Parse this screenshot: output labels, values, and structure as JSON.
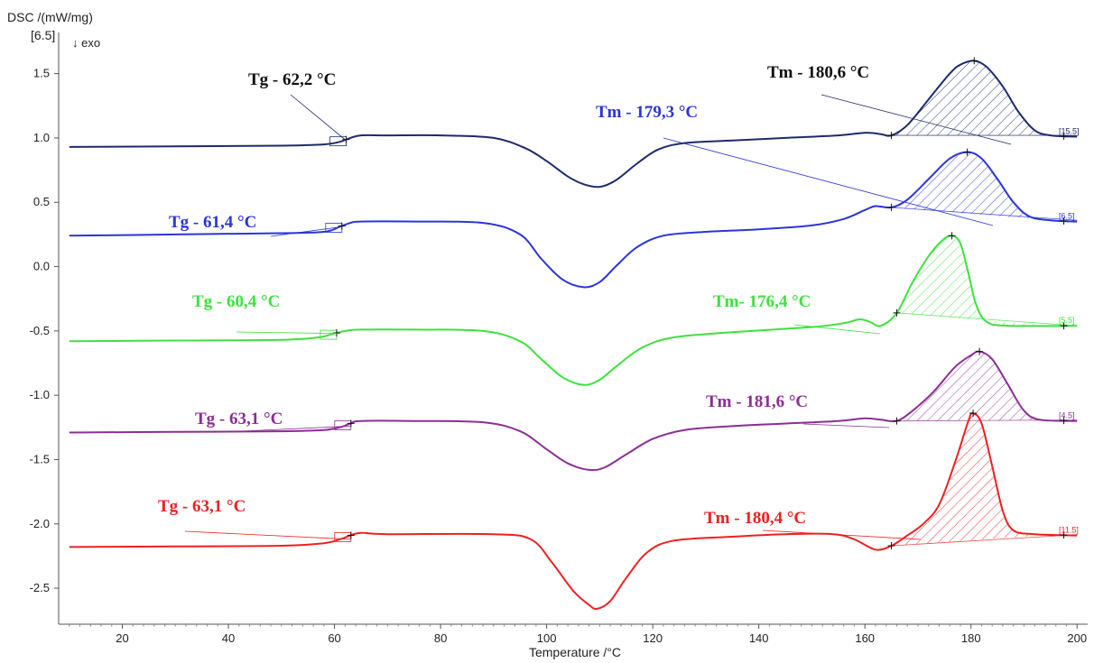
{
  "chart_data": {
    "type": "line",
    "ylabel": "DSC /(mW/mg)",
    "ylabel_prefix": "[6.5]",
    "exo_label": "↓ exo",
    "xlabel": "Temperature /°C",
    "xlim": [
      8,
      202
    ],
    "ylim": [
      -2.78,
      1.82
    ],
    "x_ticks": [
      20,
      40,
      60,
      80,
      100,
      120,
      140,
      160,
      180,
      200
    ],
    "y_ticks": [
      1.5,
      1.0,
      0.5,
      0.0,
      -0.5,
      -1.0,
      -1.5,
      -2.0,
      -2.5
    ],
    "x_tick_labels": [
      "20",
      "40",
      "60",
      "80",
      "100",
      "120",
      "140",
      "160",
      "180",
      "200"
    ],
    "y_tick_labels": [
      "1.5",
      "1.0",
      "0.5",
      "0.0",
      "-0.5",
      "-1.0",
      "-1.5",
      "-2.0",
      "-2.5"
    ],
    "series": [
      {
        "color": "#1e2a6e",
        "end_marker": "[15.5]",
        "tg_label": "Tg - 62,2 °C",
        "tm_label": "Tm - 180,6 °C",
        "tg": 62.2,
        "tm": 180.6,
        "points": [
          [
            10,
            0.93
          ],
          [
            30,
            0.935
          ],
          [
            50,
            0.94
          ],
          [
            58,
            0.95
          ],
          [
            61,
            0.97
          ],
          [
            63,
            1.0
          ],
          [
            65,
            1.02
          ],
          [
            70,
            1.02
          ],
          [
            80,
            1.02
          ],
          [
            90,
            1.0
          ],
          [
            96,
            0.92
          ],
          [
            100,
            0.82
          ],
          [
            104,
            0.7
          ],
          [
            107,
            0.64
          ],
          [
            110,
            0.62
          ],
          [
            113,
            0.67
          ],
          [
            117,
            0.8
          ],
          [
            121,
            0.91
          ],
          [
            126,
            0.96
          ],
          [
            135,
            0.98
          ],
          [
            145,
            1.0
          ],
          [
            155,
            1.02
          ],
          [
            160,
            1.04
          ],
          [
            163,
            1.03
          ],
          [
            165,
            1.02
          ],
          [
            168,
            1.1
          ],
          [
            172,
            1.3
          ],
          [
            176,
            1.5
          ],
          [
            178,
            1.57
          ],
          [
            180.6,
            1.6
          ],
          [
            183,
            1.55
          ],
          [
            186,
            1.4
          ],
          [
            189,
            1.2
          ],
          [
            192,
            1.06
          ],
          [
            195,
            1.02
          ],
          [
            200,
            1.01
          ]
        ]
      },
      {
        "color": "#2a35d8",
        "end_marker": "[6.5]",
        "tg_label": "Tg - 61,4 °C",
        "tm_label": "Tm - 179,3 °C",
        "tg": 61.4,
        "tm": 179.3,
        "points": [
          [
            10,
            0.24
          ],
          [
            30,
            0.25
          ],
          [
            50,
            0.26
          ],
          [
            58,
            0.27
          ],
          [
            61,
            0.31
          ],
          [
            63,
            0.34
          ],
          [
            65,
            0.35
          ],
          [
            75,
            0.35
          ],
          [
            88,
            0.34
          ],
          [
            95,
            0.25
          ],
          [
            99,
            0.06
          ],
          [
            103,
            -0.1
          ],
          [
            107,
            -0.16
          ],
          [
            110,
            -0.12
          ],
          [
            113,
            0.0
          ],
          [
            117,
            0.15
          ],
          [
            122,
            0.24
          ],
          [
            130,
            0.27
          ],
          [
            140,
            0.29
          ],
          [
            150,
            0.32
          ],
          [
            156,
            0.37
          ],
          [
            160,
            0.44
          ],
          [
            162,
            0.47
          ],
          [
            165,
            0.46
          ],
          [
            168,
            0.52
          ],
          [
            172,
            0.68
          ],
          [
            176,
            0.84
          ],
          [
            179.3,
            0.89
          ],
          [
            182,
            0.84
          ],
          [
            185,
            0.68
          ],
          [
            188,
            0.5
          ],
          [
            191,
            0.39
          ],
          [
            195,
            0.36
          ],
          [
            200,
            0.35
          ]
        ]
      },
      {
        "color": "#3de23d",
        "end_marker": "[5.5]",
        "tg_label": "Tg - 60,4 °C",
        "tm_label": "Tm- 176,4 °C",
        "tg": 60.4,
        "tm": 176.4,
        "points": [
          [
            10,
            -0.58
          ],
          [
            30,
            -0.575
          ],
          [
            50,
            -0.57
          ],
          [
            57,
            -0.55
          ],
          [
            60,
            -0.52
          ],
          [
            62,
            -0.5
          ],
          [
            65,
            -0.49
          ],
          [
            75,
            -0.49
          ],
          [
            88,
            -0.5
          ],
          [
            95,
            -0.58
          ],
          [
            99,
            -0.72
          ],
          [
            103,
            -0.86
          ],
          [
            107,
            -0.92
          ],
          [
            110,
            -0.88
          ],
          [
            113,
            -0.78
          ],
          [
            118,
            -0.63
          ],
          [
            124,
            -0.55
          ],
          [
            135,
            -0.51
          ],
          [
            150,
            -0.47
          ],
          [
            156,
            -0.44
          ],
          [
            159,
            -0.41
          ],
          [
            161,
            -0.43
          ],
          [
            163,
            -0.46
          ],
          [
            166,
            -0.36
          ],
          [
            169,
            -0.12
          ],
          [
            172,
            0.08
          ],
          [
            174.5,
            0.2
          ],
          [
            176.4,
            0.24
          ],
          [
            178,
            0.18
          ],
          [
            179.5,
            -0.05
          ],
          [
            181,
            -0.3
          ],
          [
            183,
            -0.43
          ],
          [
            187,
            -0.46
          ],
          [
            200,
            -0.46
          ]
        ]
      },
      {
        "color": "#8c2e95",
        "end_marker": "[4.5]",
        "tg_label": "Tg - 63,1 °C",
        "tm_label": "Tm - 181,6 °C",
        "tg": 63.1,
        "tm": 181.6,
        "points": [
          [
            10,
            -1.29
          ],
          [
            30,
            -1.285
          ],
          [
            50,
            -1.28
          ],
          [
            58,
            -1.27
          ],
          [
            61,
            -1.25
          ],
          [
            63,
            -1.22
          ],
          [
            65,
            -1.2
          ],
          [
            75,
            -1.2
          ],
          [
            88,
            -1.21
          ],
          [
            95,
            -1.28
          ],
          [
            100,
            -1.42
          ],
          [
            104,
            -1.53
          ],
          [
            108,
            -1.58
          ],
          [
            111,
            -1.56
          ],
          [
            115,
            -1.46
          ],
          [
            120,
            -1.34
          ],
          [
            126,
            -1.27
          ],
          [
            135,
            -1.24
          ],
          [
            145,
            -1.22
          ],
          [
            155,
            -1.2
          ],
          [
            160,
            -1.18
          ],
          [
            163,
            -1.19
          ],
          [
            166,
            -1.2
          ],
          [
            169,
            -1.12
          ],
          [
            173,
            -0.97
          ],
          [
            177,
            -0.78
          ],
          [
            180,
            -0.69
          ],
          [
            181.6,
            -0.66
          ],
          [
            184,
            -0.72
          ],
          [
            187,
            -0.92
          ],
          [
            190,
            -1.12
          ],
          [
            193,
            -1.19
          ],
          [
            200,
            -1.2
          ]
        ]
      },
      {
        "color": "#ee2020",
        "end_marker": "[11.5]",
        "tg_label": "Tg - 63,1 °C",
        "tm_label": "Tm - 180,4 °C",
        "tg": 63.1,
        "tm": 180.4,
        "points": [
          [
            10,
            -2.18
          ],
          [
            30,
            -2.175
          ],
          [
            50,
            -2.17
          ],
          [
            58,
            -2.15
          ],
          [
            61,
            -2.12
          ],
          [
            63,
            -2.09
          ],
          [
            65,
            -2.07
          ],
          [
            70,
            -2.08
          ],
          [
            90,
            -2.08
          ],
          [
            97,
            -2.12
          ],
          [
            101,
            -2.3
          ],
          [
            105,
            -2.52
          ],
          [
            108,
            -2.63
          ],
          [
            109.5,
            -2.66
          ],
          [
            112,
            -2.6
          ],
          [
            115,
            -2.42
          ],
          [
            119,
            -2.22
          ],
          [
            124,
            -2.13
          ],
          [
            135,
            -2.1
          ],
          [
            145,
            -2.08
          ],
          [
            154,
            -2.08
          ],
          [
            158,
            -2.12
          ],
          [
            162,
            -2.2
          ],
          [
            165,
            -2.17
          ],
          [
            168,
            -2.09
          ],
          [
            171,
            -2.0
          ],
          [
            174,
            -1.85
          ],
          [
            177,
            -1.52
          ],
          [
            179.5,
            -1.2
          ],
          [
            180.4,
            -1.14
          ],
          [
            182,
            -1.22
          ],
          [
            184,
            -1.55
          ],
          [
            186,
            -1.9
          ],
          [
            188,
            -2.05
          ],
          [
            192,
            -2.08
          ],
          [
            200,
            -2.09
          ]
        ]
      }
    ]
  }
}
